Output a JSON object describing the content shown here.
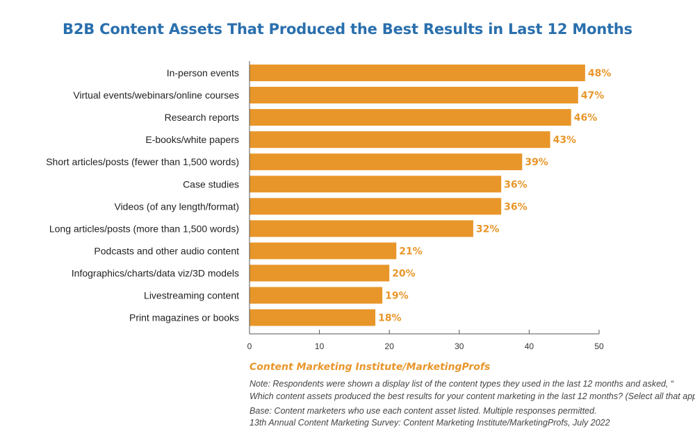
{
  "title": "B2B Content Assets That Produced the Best Results in Last 12 Months",
  "source": "Content Marketing Institute/MarketingProfs",
  "notes": {
    "line1": "Note: Respondents were shown a display list of the content types they used in the last 12 months and asked, “",
    "line2": "Which content assets produced the best results for your content marketing in the last 12 months? (Select all that apply.)”",
    "line3": "Base: Content marketers who use each content asset listed. Multiple responses permitted.",
    "line4": "13th Annual Content Marketing Survey: Content Marketing Institute/MarketingProfs, July 2022"
  },
  "colors": {
    "bar": "#e8962a",
    "title": "#2a6fad",
    "value_label": "#e8962a",
    "axis": "#555555",
    "text": "#222222"
  },
  "chart_data": {
    "type": "bar",
    "orientation": "horizontal",
    "categories": [
      "In-person events",
      "Virtual events/webinars/online courses",
      "Research reports",
      "E-books/white papers",
      "Short articles/posts (fewer than 1,500 words)",
      "Case studies",
      "Videos (of any length/format)",
      "Long articles/posts (more than 1,500 words)",
      "Podcasts and other audio content",
      "Infographics/charts/data viz/3D models",
      "Livestreaming content",
      "Print magazines or books"
    ],
    "values": [
      48,
      47,
      46,
      43,
      39,
      36,
      36,
      32,
      21,
      20,
      19,
      18
    ],
    "value_labels": [
      "48%",
      "47%",
      "46%",
      "43%",
      "39%",
      "36%",
      "36%",
      "32%",
      "21%",
      "20%",
      "19%",
      "18%"
    ],
    "x_ticks": [
      0,
      10,
      20,
      30,
      40,
      50
    ],
    "xlim": [
      0,
      50
    ],
    "grid": false,
    "legend": "none"
  }
}
